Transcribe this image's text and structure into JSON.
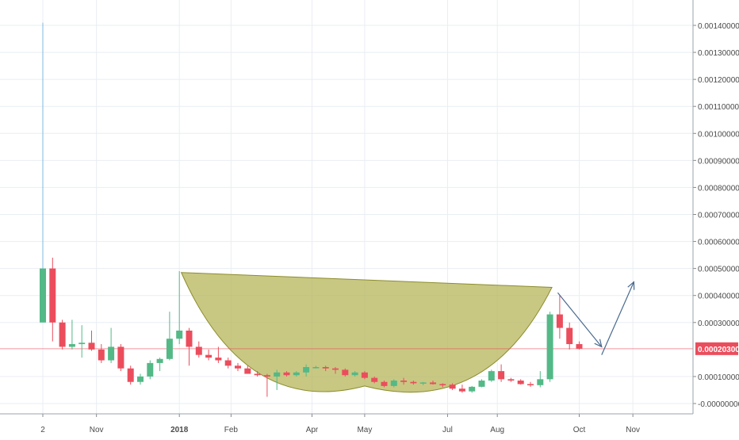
{
  "colors": {
    "up": "#53b987",
    "down": "#eb4d5c",
    "grid": "#e9eef3",
    "axis_text": "#4a4a4a",
    "price_line": "#eb4d5c",
    "price_tag_bg": "#eb4d5c",
    "price_tag_text": "#ffffff",
    "cup_fill": "#b5b55a",
    "cup_stroke": "#8c8c2e",
    "arrow": "#4a6a8f",
    "wick_spike": "#7fb8e0"
  },
  "chart_data": {
    "type": "candlestick",
    "title": "",
    "xlabel": "",
    "ylabel": "",
    "x_ticks": [
      "2",
      "Nov",
      "2018",
      "Feb",
      "Apr",
      "May",
      "Jul",
      "Aug",
      "Oct",
      "Nov"
    ],
    "y_ticks": [
      "0.00140000",
      "0.00130000",
      "0.00120000",
      "0.00110000",
      "0.00100000",
      "0.00090000",
      "0.00080000",
      "0.00070000",
      "0.00060000",
      "0.00050000",
      "0.00040000",
      "0.00030000",
      "0.00020300",
      "0.00010000",
      "-0.00000000"
    ],
    "ylim": [
      -2e-05,
      0.0015
    ],
    "grid": true,
    "last_price": "0.00020300",
    "candles": [
      {
        "x": 0,
        "o": 0.0003,
        "h": 0.00141,
        "l": 0.0003,
        "c": 0.0005
      },
      {
        "x": 1,
        "o": 0.0005,
        "h": 0.00054,
        "l": 0.00023,
        "c": 0.0003
      },
      {
        "x": 2,
        "o": 0.0003,
        "h": 0.00031,
        "l": 0.0002,
        "c": 0.00021
      },
      {
        "x": 3,
        "o": 0.00021,
        "h": 0.00031,
        "l": 0.0002,
        "c": 0.00022
      },
      {
        "x": 4,
        "o": 0.00022,
        "h": 0.00029,
        "l": 0.00017,
        "c": 0.000225
      },
      {
        "x": 5,
        "o": 0.000225,
        "h": 0.00027,
        "l": 0.000195,
        "c": 0.0002
      },
      {
        "x": 6,
        "o": 0.0002,
        "h": 0.00022,
        "l": 0.00015,
        "c": 0.00016
      },
      {
        "x": 7,
        "o": 0.00016,
        "h": 0.00028,
        "l": 0.00015,
        "c": 0.00021
      },
      {
        "x": 8,
        "o": 0.00021,
        "h": 0.00022,
        "l": 0.00012,
        "c": 0.00013
      },
      {
        "x": 9,
        "o": 0.00013,
        "h": 0.00014,
        "l": 7e-05,
        "c": 8e-05
      },
      {
        "x": 10,
        "o": 8e-05,
        "h": 0.00011,
        "l": 7e-05,
        "c": 0.0001
      },
      {
        "x": 11,
        "o": 0.0001,
        "h": 0.00016,
        "l": 9e-05,
        "c": 0.00015
      },
      {
        "x": 12,
        "o": 0.00015,
        "h": 0.00017,
        "l": 0.00012,
        "c": 0.000165
      },
      {
        "x": 13,
        "o": 0.000165,
        "h": 0.00034,
        "l": 0.00016,
        "c": 0.00024
      },
      {
        "x": 14,
        "o": 0.00024,
        "h": 0.00049,
        "l": 0.00022,
        "c": 0.00027
      },
      {
        "x": 15,
        "o": 0.00027,
        "h": 0.00028,
        "l": 0.00014,
        "c": 0.00021
      },
      {
        "x": 16,
        "o": 0.00021,
        "h": 0.00023,
        "l": 0.00017,
        "c": 0.00018
      },
      {
        "x": 17,
        "o": 0.00018,
        "h": 0.0002,
        "l": 0.00016,
        "c": 0.00017
      },
      {
        "x": 18,
        "o": 0.00017,
        "h": 0.00021,
        "l": 0.00015,
        "c": 0.00016
      },
      {
        "x": 19,
        "o": 0.00016,
        "h": 0.00017,
        "l": 0.00013,
        "c": 0.00014
      },
      {
        "x": 20,
        "o": 0.00014,
        "h": 0.00015,
        "l": 0.00012,
        "c": 0.00013
      },
      {
        "x": 21,
        "o": 0.00013,
        "h": 0.00014,
        "l": 0.00011,
        "c": 0.00011
      },
      {
        "x": 22,
        "o": 0.00011,
        "h": 0.00012,
        "l": 0.0001,
        "c": 0.000105
      },
      {
        "x": 23,
        "o": 0.000105,
        "h": 0.00011,
        "l": 2.5e-05,
        "c": 0.0001
      },
      {
        "x": 24,
        "o": 0.0001,
        "h": 0.000125,
        "l": 5e-05,
        "c": 0.000115
      },
      {
        "x": 25,
        "o": 0.000115,
        "h": 0.00012,
        "l": 0.0001,
        "c": 0.000105
      },
      {
        "x": 26,
        "o": 0.000105,
        "h": 0.00012,
        "l": 0.0001,
        "c": 0.000115
      },
      {
        "x": 27,
        "o": 0.000115,
        "h": 0.000145,
        "l": 0.0001,
        "c": 0.000135
      },
      {
        "x": 28,
        "o": 0.000135,
        "h": 0.00014,
        "l": 0.00013,
        "c": 0.000135
      },
      {
        "x": 29,
        "o": 0.000135,
        "h": 0.00014,
        "l": 0.00012,
        "c": 0.00013
      },
      {
        "x": 30,
        "o": 0.00013,
        "h": 0.000135,
        "l": 0.00011,
        "c": 0.000125
      },
      {
        "x": 31,
        "o": 0.000125,
        "h": 0.00013,
        "l": 0.0001,
        "c": 0.000105
      },
      {
        "x": 32,
        "o": 0.000105,
        "h": 0.00012,
        "l": 0.0001,
        "c": 0.000115
      },
      {
        "x": 33,
        "o": 0.000115,
        "h": 0.00012,
        "l": 9e-05,
        "c": 9.5e-05
      },
      {
        "x": 34,
        "o": 9.5e-05,
        "h": 0.0001,
        "l": 7.5e-05,
        "c": 8e-05
      },
      {
        "x": 35,
        "o": 8e-05,
        "h": 8.5e-05,
        "l": 6e-05,
        "c": 6.5e-05
      },
      {
        "x": 36,
        "o": 6.5e-05,
        "h": 9e-05,
        "l": 6e-05,
        "c": 8.5e-05
      },
      {
        "x": 37,
        "o": 8.5e-05,
        "h": 9.5e-05,
        "l": 7e-05,
        "c": 8e-05
      },
      {
        "x": 38,
        "o": 8e-05,
        "h": 8.5e-05,
        "l": 7e-05,
        "c": 7.5e-05
      },
      {
        "x": 39,
        "o": 7.5e-05,
        "h": 8e-05,
        "l": 6.8e-05,
        "c": 7.8e-05
      },
      {
        "x": 40,
        "o": 7.8e-05,
        "h": 8.5e-05,
        "l": 7e-05,
        "c": 7.2e-05
      },
      {
        "x": 41,
        "o": 7.2e-05,
        "h": 7.5e-05,
        "l": 6e-05,
        "c": 7e-05
      },
      {
        "x": 42,
        "o": 7e-05,
        "h": 7.5e-05,
        "l": 5e-05,
        "c": 5.5e-05
      },
      {
        "x": 43,
        "o": 5.5e-05,
        "h": 7e-05,
        "l": 4e-05,
        "c": 4.5e-05
      },
      {
        "x": 44,
        "o": 4.5e-05,
        "h": 6.5e-05,
        "l": 4e-05,
        "c": 6.2e-05
      },
      {
        "x": 45,
        "o": 6.2e-05,
        "h": 9e-05,
        "l": 6e-05,
        "c": 8.5e-05
      },
      {
        "x": 46,
        "o": 8.5e-05,
        "h": 0.000125,
        "l": 8e-05,
        "c": 0.00012
      },
      {
        "x": 47,
        "o": 0.00012,
        "h": 0.000145,
        "l": 8e-05,
        "c": 9e-05
      },
      {
        "x": 48,
        "o": 9e-05,
        "h": 9.5e-05,
        "l": 8e-05,
        "c": 8.5e-05
      },
      {
        "x": 49,
        "o": 8.5e-05,
        "h": 9e-05,
        "l": 7e-05,
        "c": 7.2e-05
      },
      {
        "x": 50,
        "o": 7.2e-05,
        "h": 8e-05,
        "l": 6.2e-05,
        "c": 6.8e-05
      },
      {
        "x": 51,
        "o": 6.8e-05,
        "h": 0.00012,
        "l": 6e-05,
        "c": 9e-05
      },
      {
        "x": 52,
        "o": 9e-05,
        "h": 0.00034,
        "l": 8e-05,
        "c": 0.00033
      },
      {
        "x": 53,
        "o": 0.00033,
        "h": 0.0004,
        "l": 0.00024,
        "c": 0.00028
      },
      {
        "x": 54,
        "o": 0.00028,
        "h": 0.0003,
        "l": 0.0002,
        "c": 0.00022
      },
      {
        "x": 55,
        "o": 0.00022,
        "h": 0.00023,
        "l": 0.0002,
        "c": 0.000203
      }
    ],
    "annotations": {
      "cup": {
        "left": {
          "x": 14.2,
          "y": 0.000485
        },
        "right": {
          "x": 52.2,
          "y": 0.00043
        },
        "bottom": {
          "x": 33.0,
          "y": 6.5e-05
        }
      },
      "arrow_down": {
        "from": {
          "x": 52.8,
          "y": 0.00041
        },
        "to": {
          "x": 57.3,
          "y": 0.00021
        }
      },
      "arrow_up": {
        "from": {
          "x": 57.3,
          "y": 0.00018
        },
        "to": {
          "x": 60.6,
          "y": 0.00045
        }
      }
    }
  }
}
